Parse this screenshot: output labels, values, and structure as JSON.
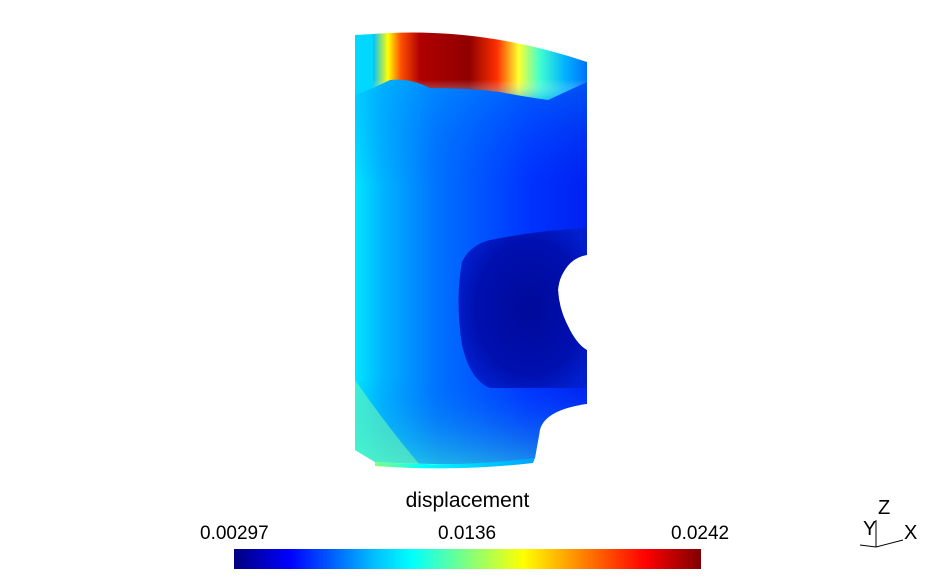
{
  "colorbar": {
    "title": "displacement",
    "min_label": "0.00297",
    "mid_label": "0.0136",
    "max_label": "0.0242",
    "colormap": "jet",
    "colors": [
      "#00007f",
      "#0000ff",
      "#00ffff",
      "#ffff00",
      "#ff0000",
      "#7f0000"
    ]
  },
  "axes": {
    "x": "X",
    "y": "Y",
    "z": "Z"
  },
  "model": {
    "field": "displacement",
    "accent": "#0033ff"
  }
}
